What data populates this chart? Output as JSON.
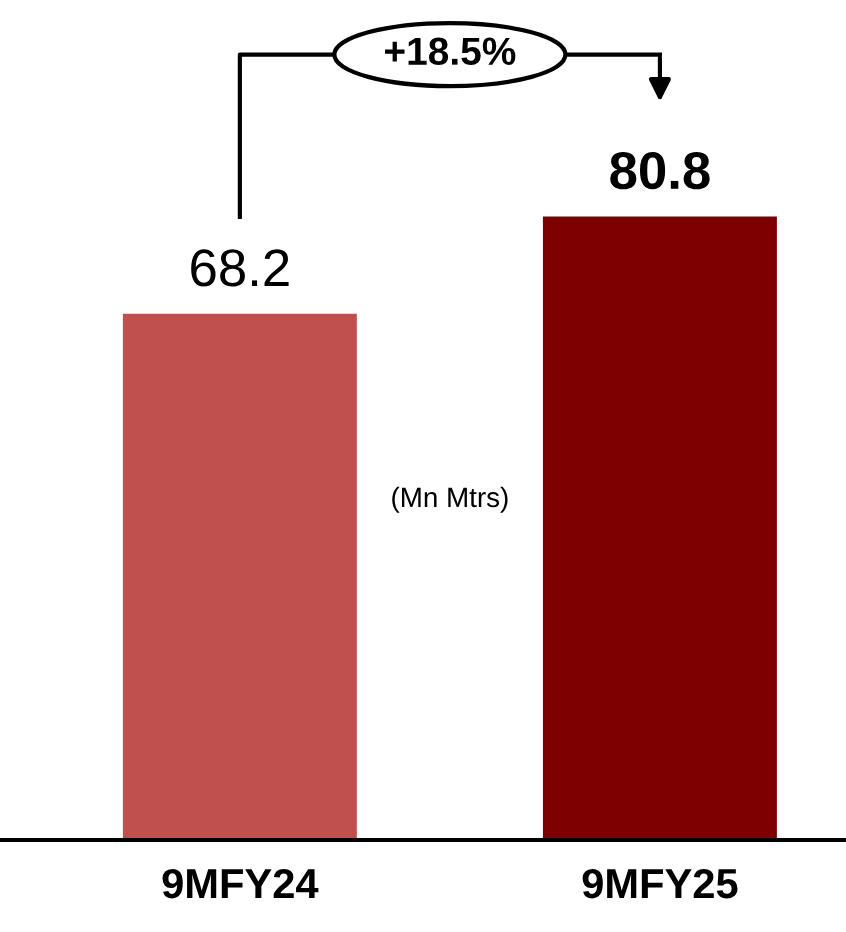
{
  "chart_data": {
    "type": "bar",
    "categories": [
      "9MFY24",
      "9MFY25"
    ],
    "values": [
      68.2,
      80.8
    ],
    "colors": [
      "#c0504d",
      "#7f0000"
    ],
    "data_labels": true,
    "grid": false,
    "legend": false,
    "annotations": [
      "+18.5%",
      "(Mn Mtrs)"
    ]
  }
}
